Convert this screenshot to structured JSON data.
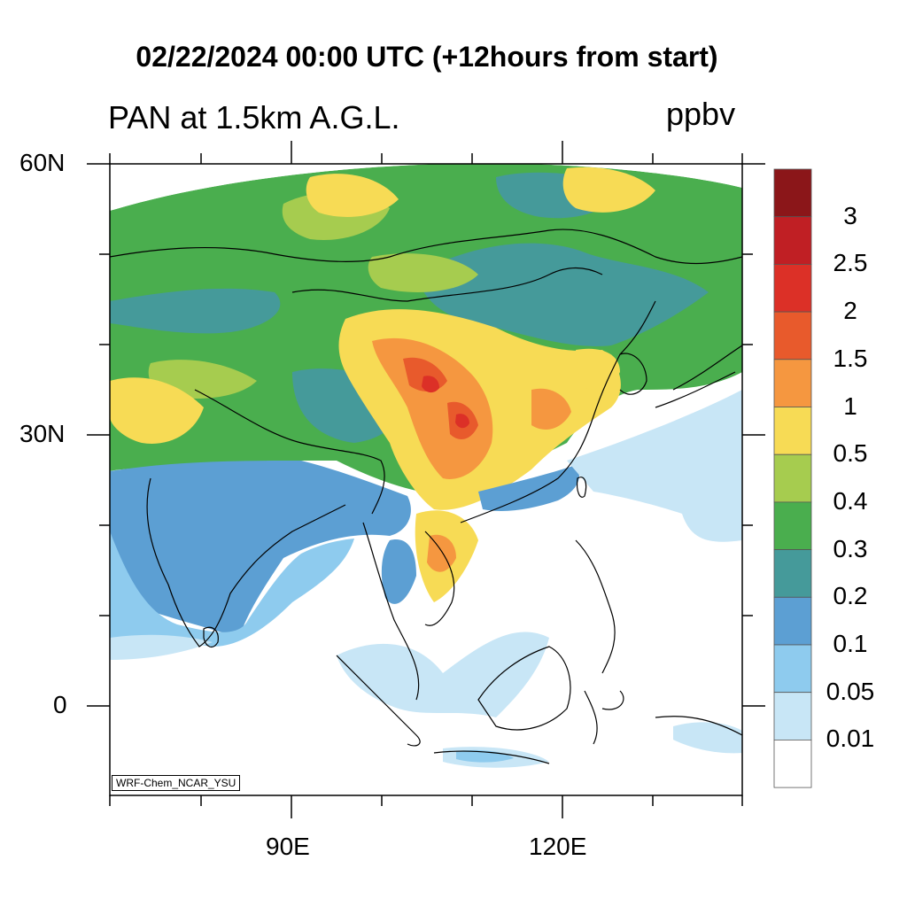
{
  "title": "02/22/2024 00:00 UTC (+12hours from start)",
  "subtitle": "PAN at 1.5km A.G.L.",
  "units": "ppbv",
  "credit": "WRF-Chem_NCAR_YSU",
  "lat_labels": [
    "60N",
    "30N",
    "0"
  ],
  "lon_labels": [
    "90E",
    "120E"
  ],
  "legend": {
    "labels": [
      "3",
      "2.5",
      "2",
      "1.5",
      "1",
      "0.5",
      "0.4",
      "0.3",
      "0.2",
      "0.1",
      "0.05",
      "0.01"
    ],
    "colors": [
      "#8b1619",
      "#c01f24",
      "#dc3027",
      "#e85a2c",
      "#f59740",
      "#f7db55",
      "#a6cc4f",
      "#4aae4e",
      "#459a9a",
      "#5c9fd3",
      "#8ecbee",
      "#c8e6f6",
      "#ffffff"
    ]
  },
  "colors": {
    "ocean": "#ffffff",
    "frame": "#000000"
  }
}
